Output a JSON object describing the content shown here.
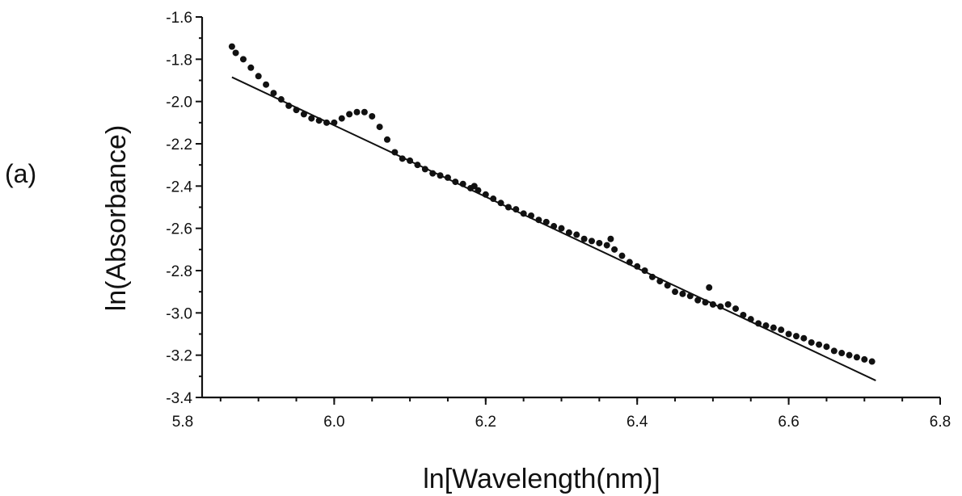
{
  "panel_label": "(a)",
  "chart_data": {
    "type": "scatter",
    "title": "",
    "xlabel": "ln[Wavelength(nm)]",
    "ylabel": "ln(Absorbance)",
    "xlim": [
      5.8,
      6.8
    ],
    "ylim": [
      -3.4,
      -1.6
    ],
    "x_ticks": [
      "5.8",
      "6.0",
      "6.2",
      "6.4",
      "6.6",
      "6.8"
    ],
    "y_ticks": [
      "-1.6",
      "-1.8",
      "-2.0",
      "-2.2",
      "-2.4",
      "-2.6",
      "-2.8",
      "-3.0",
      "-3.2",
      "-3.4"
    ],
    "grid": false,
    "legend": "none",
    "series": [
      {
        "kind": "points",
        "x": [
          5.865,
          5.87,
          5.88,
          5.89,
          5.9,
          5.91,
          5.92,
          5.93,
          5.94,
          5.95,
          5.96,
          5.97,
          5.98,
          5.99,
          6.0,
          6.01,
          6.02,
          6.03,
          6.04,
          6.05,
          6.06,
          6.07,
          6.08,
          6.09,
          6.1,
          6.11,
          6.12,
          6.13,
          6.14,
          6.15,
          6.16,
          6.17,
          6.18,
          6.185,
          6.19,
          6.2,
          6.21,
          6.22,
          6.23,
          6.24,
          6.25,
          6.26,
          6.27,
          6.28,
          6.29,
          6.3,
          6.31,
          6.32,
          6.33,
          6.34,
          6.35,
          6.36,
          6.365,
          6.37,
          6.38,
          6.39,
          6.4,
          6.41,
          6.42,
          6.43,
          6.44,
          6.45,
          6.46,
          6.47,
          6.48,
          6.49,
          6.495,
          6.5,
          6.51,
          6.52,
          6.53,
          6.54,
          6.55,
          6.56,
          6.57,
          6.58,
          6.59,
          6.6,
          6.61,
          6.62,
          6.63,
          6.64,
          6.65,
          6.66,
          6.67,
          6.68,
          6.69,
          6.7,
          6.71
        ],
        "y": [
          -1.74,
          -1.77,
          -1.8,
          -1.84,
          -1.88,
          -1.92,
          -1.96,
          -1.99,
          -2.02,
          -2.04,
          -2.06,
          -2.08,
          -2.09,
          -2.1,
          -2.1,
          -2.08,
          -2.06,
          -2.05,
          -2.05,
          -2.07,
          -2.12,
          -2.18,
          -2.24,
          -2.27,
          -2.28,
          -2.3,
          -2.32,
          -2.34,
          -2.35,
          -2.36,
          -2.38,
          -2.39,
          -2.41,
          -2.4,
          -2.42,
          -2.44,
          -2.46,
          -2.48,
          -2.5,
          -2.51,
          -2.53,
          -2.54,
          -2.56,
          -2.57,
          -2.59,
          -2.6,
          -2.62,
          -2.63,
          -2.65,
          -2.66,
          -2.67,
          -2.68,
          -2.65,
          -2.7,
          -2.73,
          -2.76,
          -2.78,
          -2.8,
          -2.83,
          -2.85,
          -2.87,
          -2.9,
          -2.91,
          -2.92,
          -2.94,
          -2.95,
          -2.88,
          -2.96,
          -2.97,
          -2.96,
          -2.98,
          -3.01,
          -3.03,
          -3.05,
          -3.06,
          -3.07,
          -3.08,
          -3.1,
          -3.11,
          -3.12,
          -3.14,
          -3.15,
          -3.16,
          -3.18,
          -3.19,
          -3.2,
          -3.21,
          -3.22,
          -3.23
        ]
      },
      {
        "kind": "line",
        "x": [
          5.865,
          6.715
        ],
        "y": [
          -1.885,
          -3.32
        ]
      }
    ]
  }
}
